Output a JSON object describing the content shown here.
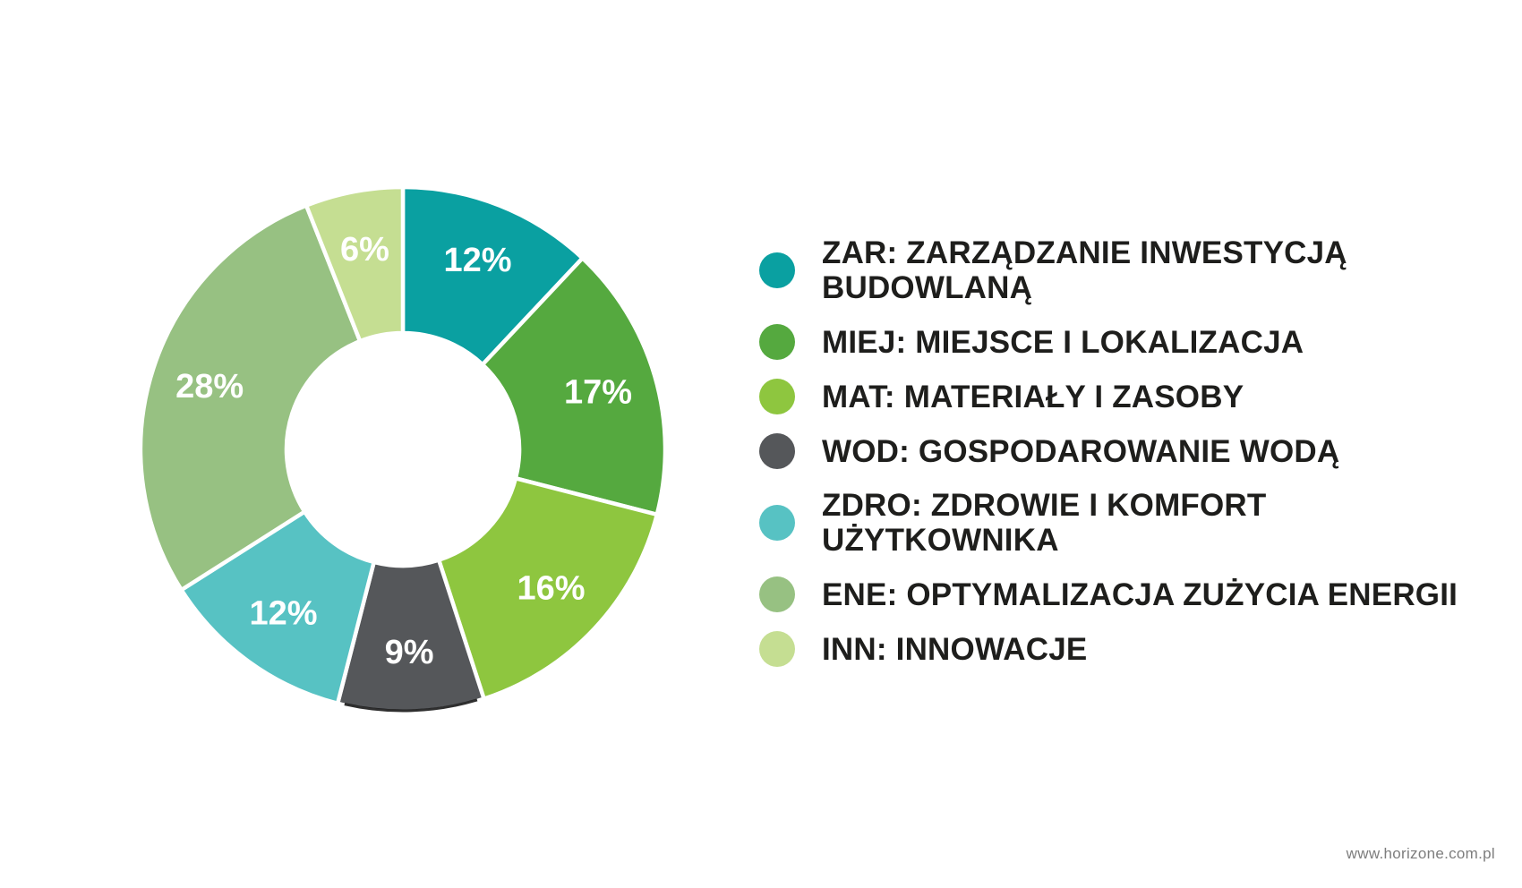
{
  "chart_data": {
    "type": "pie",
    "subtype": "donut",
    "title": "",
    "unit": "%",
    "start_angle_deg": 0,
    "direction": "clockwise",
    "legend_position": "right",
    "colors": {
      "background": "#FFFFFF",
      "slice_label_text": "#FFFFFF",
      "legend_text": "#1E1E1C",
      "slice_separator": "#FFFFFF"
    },
    "segments": [
      {
        "value": 12,
        "display": "12%",
        "color": "#0AA0A1",
        "legend_lines": [
          "ZAR: ZARZĄDZANIE INWESTYCJĄ",
          "BUDOWLANĄ"
        ]
      },
      {
        "value": 17,
        "display": "17%",
        "color": "#55A93F",
        "legend_lines": [
          "MIEJ: MIEJSCE I LOKALIZACJA"
        ]
      },
      {
        "value": 16,
        "display": "16%",
        "color": "#8EC63F",
        "legend_lines": [
          "MAT: MATERIAŁY I ZASOBY"
        ]
      },
      {
        "value": 9,
        "display": "9%",
        "color": "#55575A",
        "legend_lines": [
          "WOD: GOSPODAROWANIE WODĄ"
        ],
        "outer_edge_dark": true
      },
      {
        "value": 12,
        "display": "12%",
        "color": "#57C2C3",
        "legend_lines": [
          "ZDRO: ZDROWIE I KOMFORT",
          "UŻYTKOWNIKA"
        ]
      },
      {
        "value": 28,
        "display": "28%",
        "color": "#97C182",
        "legend_lines": [
          "ENE: OPTYMALIZACJA ZUŻYCIA ENERGII"
        ]
      },
      {
        "value": 6,
        "display": "6%",
        "color": "#C5DE92",
        "legend_lines": [
          "INN: INNOWACJE"
        ]
      }
    ]
  },
  "footer": {
    "url": "www.horizone.com.pl"
  }
}
